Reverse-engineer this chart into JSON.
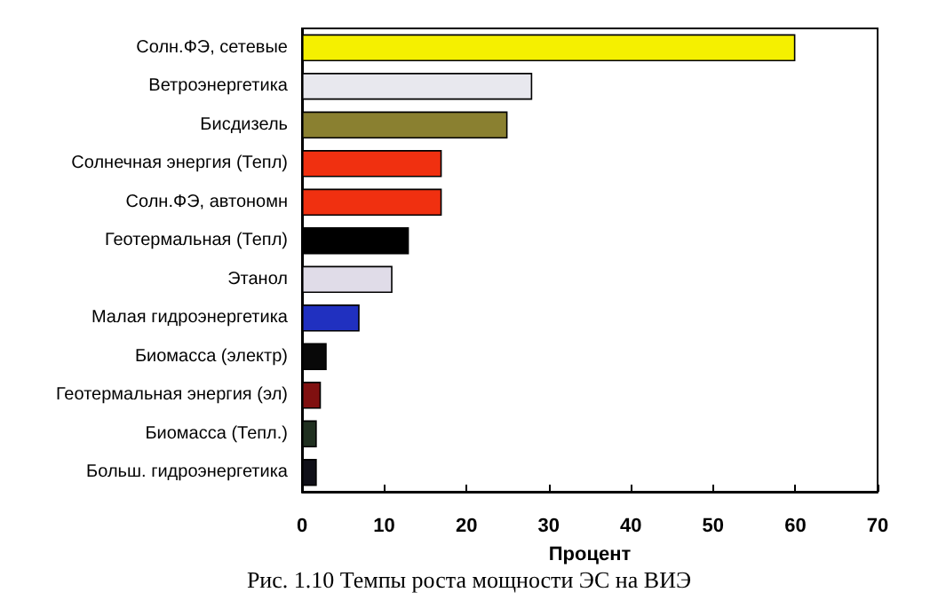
{
  "chart_data": {
    "type": "bar",
    "orientation": "horizontal",
    "categories": [
      "Солн.ФЭ, сетевые",
      "Ветроэнергетика",
      "Бисдизель",
      "Солнечная энергия (Тепл)",
      "Солн.ФЭ, автономн",
      "Геотермальная (Тепл)",
      "Этанол",
      "Малая гидроэнергетика",
      "Биомасса (электр)",
      "Геотермальная энергия (эл)",
      "Биомасса (Тепл.)",
      "Больш. гидроэнергетика"
    ],
    "values": [
      60,
      28,
      25,
      17,
      17,
      13,
      11,
      7,
      3,
      2.3,
      1.8,
      1.8
    ],
    "colors": [
      "#f5f000",
      "#e8e8ee",
      "#8a8030",
      "#f03010",
      "#f03010",
      "#000000",
      "#e0dce8",
      "#2030c0",
      "#080808",
      "#801010",
      "#203020",
      "#101018"
    ],
    "xlabel": "Процент",
    "xlim": [
      0,
      70
    ],
    "xticks": [
      0,
      10,
      20,
      30,
      40,
      50,
      60,
      70
    ],
    "grid": false,
    "annotations": [
      "Рис. 1.10 Темпы роста мощности ЭС на ВИЭ"
    ]
  }
}
